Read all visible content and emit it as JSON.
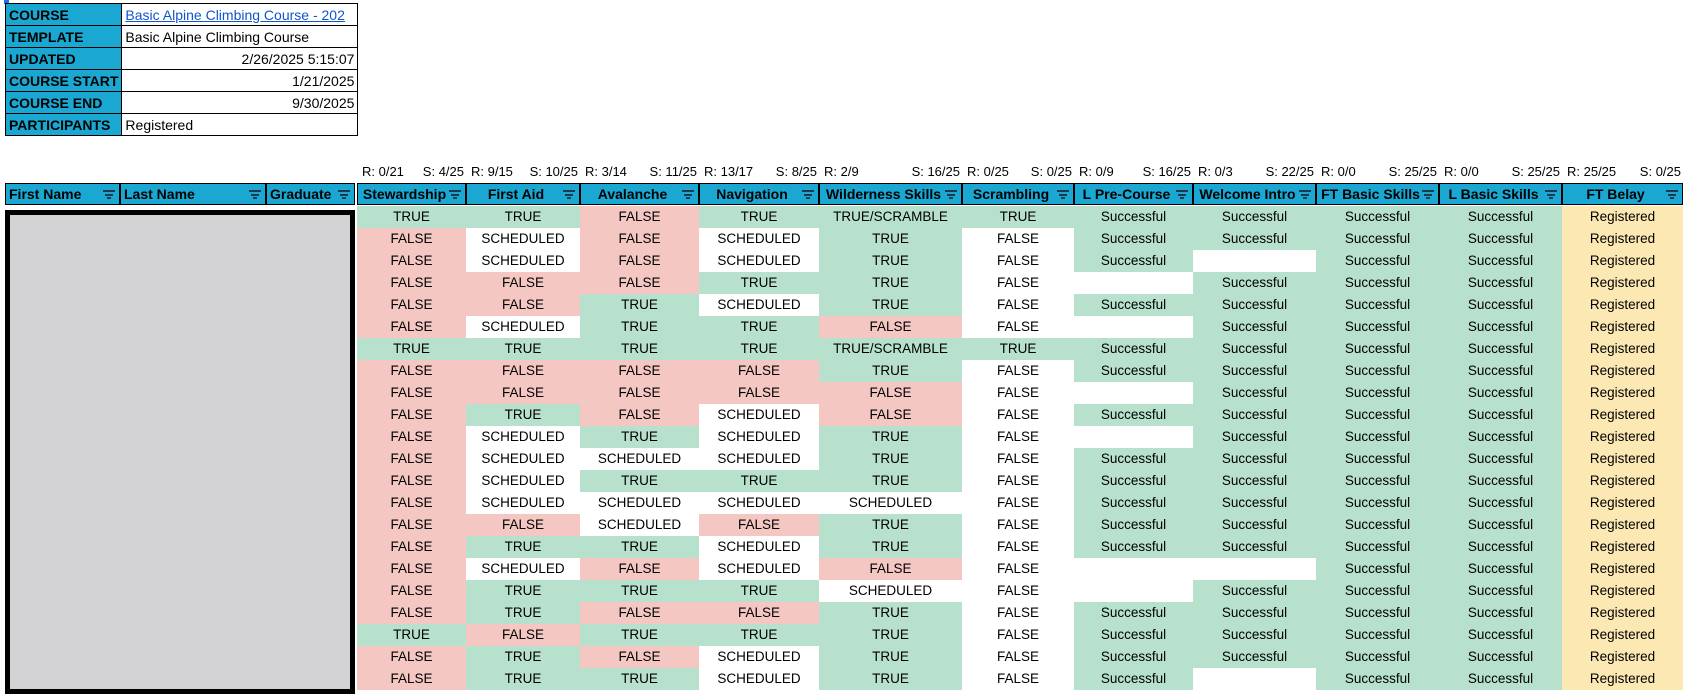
{
  "info": [
    {
      "label": "COURSE",
      "value": "Basic Alpine Climbing Course - 202",
      "link": true
    },
    {
      "label": "TEMPLATE",
      "value": "Basic Alpine Climbing Course",
      "link": false
    },
    {
      "label": "UPDATED",
      "value": "2/26/2025 5:15:07",
      "link": false,
      "num": true
    },
    {
      "label": "COURSE START",
      "value": "1/21/2025",
      "link": false,
      "num": true
    },
    {
      "label": "COURSE END",
      "value": "9/30/2025",
      "link": false,
      "num": true
    },
    {
      "label": "PARTICIPANTS",
      "value": "Registered",
      "link": false
    }
  ],
  "name_headers": [
    "First Name",
    "Last Name",
    "Graduate"
  ],
  "columns": [
    {
      "header": "Stewardship",
      "r": "R: 0/21",
      "s": "S: 4/25"
    },
    {
      "header": "First Aid",
      "r": "R: 9/15",
      "s": "S: 10/25"
    },
    {
      "header": "Avalanche",
      "r": "R: 3/14",
      "s": "S: 11/25"
    },
    {
      "header": "Navigation",
      "r": "R: 13/17",
      "s": "S: 8/25"
    },
    {
      "header": "Wilderness Skills",
      "r": "R: 2/9",
      "s": "S: 16/25"
    },
    {
      "header": "Scrambling",
      "r": "R: 0/25",
      "s": "S: 0/25"
    },
    {
      "header": "L Pre-Course",
      "r": "R: 0/9",
      "s": "S: 16/25"
    },
    {
      "header": "Welcome Intro",
      "r": "R: 0/3",
      "s": "S: 22/25"
    },
    {
      "header": "FT Basic Skills",
      "r": "R: 0/0",
      "s": "S: 25/25"
    },
    {
      "header": "L Basic Skills",
      "r": "R: 0/0",
      "s": "S: 25/25"
    },
    {
      "header": "FT Belay",
      "r": "R: 25/25",
      "s": "S: 0/25"
    }
  ],
  "rows": [
    [
      "TRUE",
      "TRUE",
      "FALSE",
      "TRUE",
      "TRUE/SCRAMBLE",
      "TRUE",
      "Successful",
      "Successful",
      "Successful",
      "Successful",
      "Registered"
    ],
    [
      "FALSE",
      "SCHEDULED",
      "FALSE",
      "SCHEDULED",
      "TRUE",
      "FALSE",
      "Successful",
      "Successful",
      "Successful",
      "Successful",
      "Registered"
    ],
    [
      "FALSE",
      "SCHEDULED",
      "FALSE",
      "SCHEDULED",
      "TRUE",
      "FALSE",
      "Successful",
      "",
      "Successful",
      "Successful",
      "Registered"
    ],
    [
      "FALSE",
      "FALSE",
      "FALSE",
      "TRUE",
      "TRUE",
      "FALSE",
      "",
      "Successful",
      "Successful",
      "Successful",
      "Registered"
    ],
    [
      "FALSE",
      "FALSE",
      "TRUE",
      "SCHEDULED",
      "TRUE",
      "FALSE",
      "Successful",
      "Successful",
      "Successful",
      "Successful",
      "Registered"
    ],
    [
      "FALSE",
      "SCHEDULED",
      "TRUE",
      "TRUE",
      "FALSE",
      "FALSE",
      "",
      "Successful",
      "Successful",
      "Successful",
      "Registered"
    ],
    [
      "TRUE",
      "TRUE",
      "TRUE",
      "TRUE",
      "TRUE/SCRAMBLE",
      "TRUE",
      "Successful",
      "Successful",
      "Successful",
      "Successful",
      "Registered"
    ],
    [
      "FALSE",
      "FALSE",
      "FALSE",
      "FALSE",
      "TRUE",
      "FALSE",
      "Successful",
      "Successful",
      "Successful",
      "Successful",
      "Registered"
    ],
    [
      "FALSE",
      "FALSE",
      "FALSE",
      "FALSE",
      "FALSE",
      "FALSE",
      "",
      "Successful",
      "Successful",
      "Successful",
      "Registered"
    ],
    [
      "FALSE",
      "TRUE",
      "FALSE",
      "SCHEDULED",
      "FALSE",
      "FALSE",
      "Successful",
      "Successful",
      "Successful",
      "Successful",
      "Registered"
    ],
    [
      "FALSE",
      "SCHEDULED",
      "TRUE",
      "SCHEDULED",
      "TRUE",
      "FALSE",
      "",
      "Successful",
      "Successful",
      "Successful",
      "Registered"
    ],
    [
      "FALSE",
      "SCHEDULED",
      "SCHEDULED",
      "SCHEDULED",
      "TRUE",
      "FALSE",
      "Successful",
      "Successful",
      "Successful",
      "Successful",
      "Registered"
    ],
    [
      "FALSE",
      "SCHEDULED",
      "TRUE",
      "TRUE",
      "TRUE",
      "FALSE",
      "Successful",
      "Successful",
      "Successful",
      "Successful",
      "Registered"
    ],
    [
      "FALSE",
      "SCHEDULED",
      "SCHEDULED",
      "SCHEDULED",
      "SCHEDULED",
      "FALSE",
      "Successful",
      "Successful",
      "Successful",
      "Successful",
      "Registered"
    ],
    [
      "FALSE",
      "FALSE",
      "SCHEDULED",
      "FALSE",
      "TRUE",
      "FALSE",
      "Successful",
      "Successful",
      "Successful",
      "Successful",
      "Registered"
    ],
    [
      "FALSE",
      "TRUE",
      "TRUE",
      "SCHEDULED",
      "TRUE",
      "FALSE",
      "Successful",
      "Successful",
      "Successful",
      "Successful",
      "Registered"
    ],
    [
      "FALSE",
      "SCHEDULED",
      "FALSE",
      "SCHEDULED",
      "FALSE",
      "FALSE",
      "",
      "",
      "Successful",
      "Successful",
      "Registered"
    ],
    [
      "FALSE",
      "TRUE",
      "TRUE",
      "TRUE",
      "SCHEDULED",
      "FALSE",
      "",
      "Successful",
      "Successful",
      "Successful",
      "Registered"
    ],
    [
      "FALSE",
      "TRUE",
      "FALSE",
      "FALSE",
      "TRUE",
      "FALSE",
      "Successful",
      "Successful",
      "Successful",
      "Successful",
      "Registered"
    ],
    [
      "TRUE",
      "FALSE",
      "TRUE",
      "TRUE",
      "TRUE",
      "FALSE",
      "Successful",
      "Successful",
      "Successful",
      "Successful",
      "Registered"
    ],
    [
      "FALSE",
      "TRUE",
      "FALSE",
      "SCHEDULED",
      "TRUE",
      "FALSE",
      "Successful",
      "Successful",
      "Successful",
      "Successful",
      "Registered"
    ],
    [
      "FALSE",
      "TRUE",
      "TRUE",
      "SCHEDULED",
      "TRUE",
      "FALSE",
      "Successful",
      "",
      "Successful",
      "Successful",
      "Registered"
    ]
  ],
  "colors": {
    "header_blue": "#1aa7d1",
    "true_green": "#b7e1cd",
    "false_red": "#f4c7c3",
    "registered_yellow": "#fce8b2",
    "link_blue": "#1155cc"
  },
  "icons": {
    "filter": "filter-icon"
  }
}
